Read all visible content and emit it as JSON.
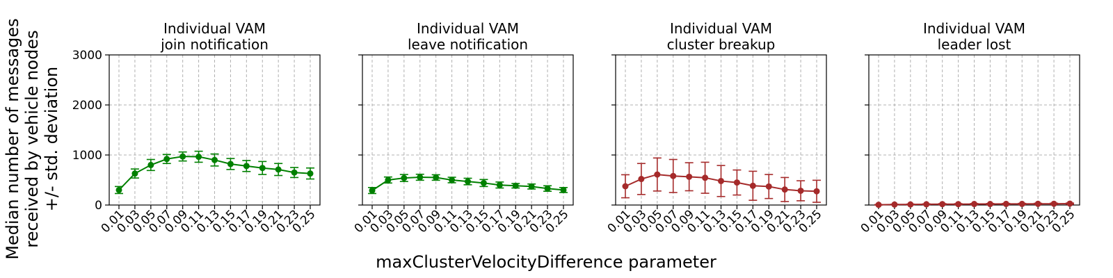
{
  "figure": {
    "ylabel_lines": [
      "Median number of messages",
      "received by vehicle nodes",
      "+/- std. deviation"
    ],
    "xlabel": "maxClusterVelocityDifference parameter"
  },
  "chart_data": [
    {
      "type": "line",
      "title_lines": [
        "Individual VAM",
        "join notification"
      ],
      "color": "#008000",
      "x": [
        "0.01",
        "0.03",
        "0.05",
        "0.07",
        "0.09",
        "0.11",
        "0.13",
        "0.15",
        "0.17",
        "0.19",
        "0.21",
        "0.23",
        "0.25"
      ],
      "values": [
        300,
        630,
        800,
        920,
        970,
        965,
        900,
        820,
        780,
        740,
        710,
        650,
        630
      ],
      "errors": [
        70,
        90,
        110,
        90,
        90,
        110,
        120,
        110,
        110,
        130,
        120,
        100,
        110
      ],
      "ylim": [
        0,
        3000
      ],
      "yticks": [
        0,
        1000,
        2000,
        3000
      ],
      "grid": true
    },
    {
      "type": "line",
      "title_lines": [
        "Individual VAM",
        "leave notification"
      ],
      "color": "#008000",
      "x": [
        "0.01",
        "0.03",
        "0.05",
        "0.07",
        "0.09",
        "0.11",
        "0.13",
        "0.15",
        "0.17",
        "0.19",
        "0.21",
        "0.23",
        "0.25"
      ],
      "values": [
        290,
        500,
        540,
        555,
        550,
        500,
        470,
        440,
        400,
        385,
        370,
        330,
        300
      ],
      "errors": [
        60,
        60,
        70,
        60,
        55,
        55,
        65,
        70,
        60,
        45,
        50,
        55,
        50
      ],
      "ylim": [
        0,
        3000
      ],
      "yticks": [
        0,
        1000,
        2000,
        3000
      ],
      "grid": true
    },
    {
      "type": "line",
      "title_lines": [
        "Individual VAM",
        "cluster breakup"
      ],
      "color": "#a52a2a",
      "x": [
        "0.01",
        "0.03",
        "0.05",
        "0.07",
        "0.09",
        "0.11",
        "0.13",
        "0.15",
        "0.17",
        "0.19",
        "0.21",
        "0.23",
        "0.25"
      ],
      "values": [
        375,
        520,
        610,
        580,
        565,
        545,
        480,
        450,
        385,
        370,
        310,
        285,
        275
      ],
      "errors": [
        230,
        310,
        330,
        330,
        280,
        310,
        310,
        250,
        290,
        240,
        240,
        200,
        220
      ],
      "ylim": [
        0,
        3000
      ],
      "yticks": [
        0,
        1000,
        2000,
        3000
      ],
      "grid": true
    },
    {
      "type": "line",
      "title_lines": [
        "Individual VAM",
        "leader lost"
      ],
      "color": "#a52a2a",
      "x": [
        "0.01",
        "0.03",
        "0.05",
        "0.07",
        "0.09",
        "0.11",
        "0.13",
        "0.15",
        "0.17",
        "0.19",
        "0.21",
        "0.23",
        "0.25"
      ],
      "values": [
        5,
        10,
        12,
        15,
        18,
        18,
        20,
        20,
        22,
        22,
        24,
        25,
        28
      ],
      "errors": [
        5,
        6,
        7,
        8,
        9,
        9,
        10,
        10,
        10,
        11,
        11,
        12,
        12
      ],
      "ylim": [
        0,
        3000
      ],
      "yticks": [
        0,
        1000,
        2000,
        3000
      ],
      "grid": true
    }
  ]
}
